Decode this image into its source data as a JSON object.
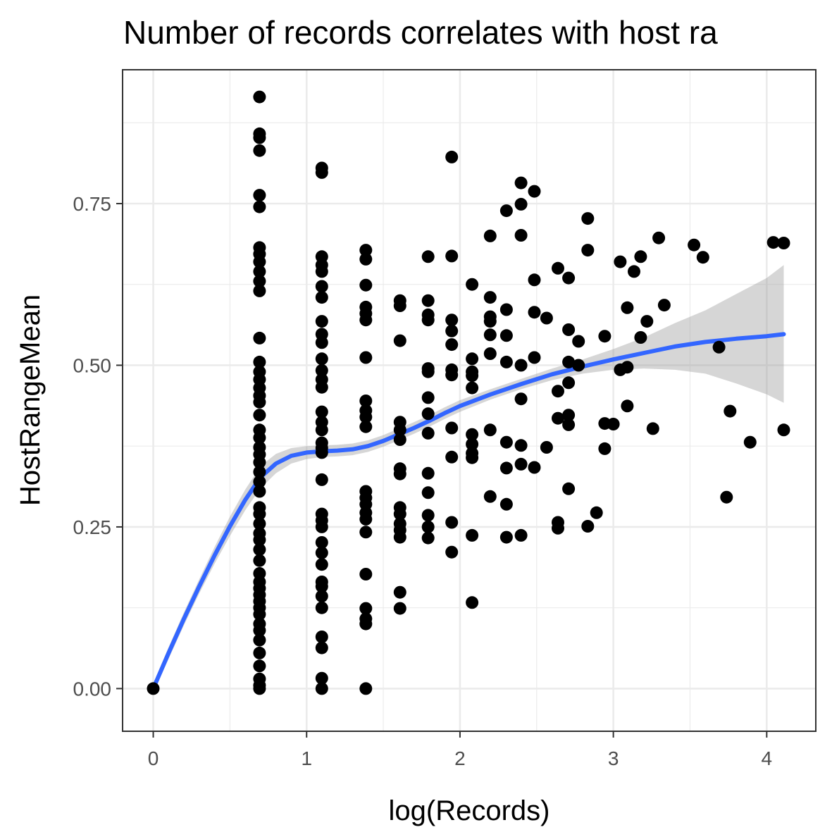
{
  "chart_data": {
    "type": "scatter",
    "title": "Number of records correlates with host ra",
    "xlabel": "log(Records)",
    "ylabel": "HostRangeMean",
    "xlim": [
      -0.2,
      4.32
    ],
    "ylim": [
      -0.066,
      0.957
    ],
    "x_ticks": [
      0,
      1,
      2,
      3,
      4
    ],
    "x_tick_labels": [
      "0",
      "1",
      "2",
      "3",
      "4"
    ],
    "y_ticks": [
      0,
      0.25,
      0.5,
      0.75
    ],
    "y_tick_labels": [
      "0.00",
      "0.25",
      "0.50",
      "0.75"
    ],
    "grid": true,
    "colors": {
      "points": "#000000",
      "smooth": "#3366ff",
      "ribbon": "#999999",
      "panel_border": "#333333",
      "grid": "#ebebeb"
    },
    "points": [
      [
        0,
        0
      ],
      [
        0.693,
        0.915
      ],
      [
        0.693,
        0.858
      ],
      [
        0.693,
        0.852
      ],
      [
        0.693,
        0.832
      ],
      [
        0.693,
        0.763
      ],
      [
        0.693,
        0.745
      ],
      [
        0.693,
        0.682
      ],
      [
        0.693,
        0.672
      ],
      [
        0.693,
        0.66
      ],
      [
        0.693,
        0.645
      ],
      [
        0.693,
        0.63
      ],
      [
        0.693,
        0.615
      ],
      [
        0.693,
        0.542
      ],
      [
        0.693,
        0.505
      ],
      [
        0.693,
        0.49
      ],
      [
        0.693,
        0.478
      ],
      [
        0.693,
        0.465
      ],
      [
        0.693,
        0.453
      ],
      [
        0.693,
        0.443
      ],
      [
        0.693,
        0.423
      ],
      [
        0.693,
        0.4
      ],
      [
        0.693,
        0.388
      ],
      [
        0.693,
        0.373
      ],
      [
        0.693,
        0.362
      ],
      [
        0.693,
        0.35
      ],
      [
        0.693,
        0.335
      ],
      [
        0.693,
        0.32
      ],
      [
        0.693,
        0.305
      ],
      [
        0.693,
        0.28
      ],
      [
        0.693,
        0.27
      ],
      [
        0.693,
        0.255
      ],
      [
        0.693,
        0.24
      ],
      [
        0.693,
        0.23
      ],
      [
        0.693,
        0.215
      ],
      [
        0.693,
        0.198
      ],
      [
        0.693,
        0.178
      ],
      [
        0.693,
        0.165
      ],
      [
        0.693,
        0.155
      ],
      [
        0.693,
        0.145
      ],
      [
        0.693,
        0.135
      ],
      [
        0.693,
        0.125
      ],
      [
        0.693,
        0.115
      ],
      [
        0.693,
        0.1
      ],
      [
        0.693,
        0.09
      ],
      [
        0.693,
        0.075
      ],
      [
        0.693,
        0.055
      ],
      [
        0.693,
        0.035
      ],
      [
        0.693,
        0.015
      ],
      [
        0.693,
        0.005
      ],
      [
        0.693,
        0
      ],
      [
        1.099,
        0.805
      ],
      [
        1.099,
        0.798
      ],
      [
        1.099,
        0.668
      ],
      [
        1.099,
        0.655
      ],
      [
        1.099,
        0.645
      ],
      [
        1.099,
        0.622
      ],
      [
        1.099,
        0.605
      ],
      [
        1.099,
        0.568
      ],
      [
        1.099,
        0.548
      ],
      [
        1.099,
        0.535
      ],
      [
        1.099,
        0.51
      ],
      [
        1.099,
        0.492
      ],
      [
        1.099,
        0.478
      ],
      [
        1.099,
        0.466
      ],
      [
        1.099,
        0.428
      ],
      [
        1.099,
        0.412
      ],
      [
        1.099,
        0.4
      ],
      [
        1.099,
        0.38
      ],
      [
        1.099,
        0.372
      ],
      [
        1.099,
        0.365
      ],
      [
        1.099,
        0.323
      ],
      [
        1.099,
        0.27
      ],
      [
        1.099,
        0.26
      ],
      [
        1.099,
        0.25
      ],
      [
        1.099,
        0.226
      ],
      [
        1.099,
        0.21
      ],
      [
        1.099,
        0.192
      ],
      [
        1.099,
        0.165
      ],
      [
        1.099,
        0.158
      ],
      [
        1.099,
        0.143
      ],
      [
        1.099,
        0.125
      ],
      [
        1.099,
        0.08
      ],
      [
        1.099,
        0.063
      ],
      [
        1.099,
        0.016
      ],
      [
        1.099,
        0
      ],
      [
        1.386,
        0.678
      ],
      [
        1.386,
        0.664
      ],
      [
        1.386,
        0.624
      ],
      [
        1.386,
        0.59
      ],
      [
        1.386,
        0.58
      ],
      [
        1.386,
        0.57
      ],
      [
        1.386,
        0.512
      ],
      [
        1.386,
        0.445
      ],
      [
        1.386,
        0.43
      ],
      [
        1.386,
        0.42
      ],
      [
        1.386,
        0.405
      ],
      [
        1.386,
        0.305
      ],
      [
        1.386,
        0.295
      ],
      [
        1.386,
        0.285
      ],
      [
        1.386,
        0.272
      ],
      [
        1.386,
        0.262
      ],
      [
        1.386,
        0.242
      ],
      [
        1.386,
        0.177
      ],
      [
        1.386,
        0.124
      ],
      [
        1.386,
        0.108
      ],
      [
        1.386,
        0.1
      ],
      [
        1.386,
        0
      ],
      [
        1.609,
        0.6
      ],
      [
        1.609,
        0.592
      ],
      [
        1.609,
        0.538
      ],
      [
        1.609,
        0.412
      ],
      [
        1.609,
        0.4
      ],
      [
        1.609,
        0.385
      ],
      [
        1.609,
        0.34
      ],
      [
        1.609,
        0.332
      ],
      [
        1.609,
        0.28
      ],
      [
        1.609,
        0.27
      ],
      [
        1.609,
        0.255
      ],
      [
        1.609,
        0.245
      ],
      [
        1.609,
        0.234
      ],
      [
        1.609,
        0.149
      ],
      [
        1.609,
        0.124
      ],
      [
        1.792,
        0.668
      ],
      [
        1.792,
        0.6
      ],
      [
        1.792,
        0.578
      ],
      [
        1.792,
        0.57
      ],
      [
        1.792,
        0.495
      ],
      [
        1.792,
        0.49
      ],
      [
        1.792,
        0.45
      ],
      [
        1.792,
        0.425
      ],
      [
        1.792,
        0.395
      ],
      [
        1.792,
        0.333
      ],
      [
        1.792,
        0.303
      ],
      [
        1.792,
        0.268
      ],
      [
        1.792,
        0.25
      ],
      [
        1.792,
        0.233
      ],
      [
        1.946,
        0.822
      ],
      [
        1.946,
        0.669
      ],
      [
        1.946,
        0.57
      ],
      [
        1.946,
        0.553
      ],
      [
        1.946,
        0.532
      ],
      [
        1.946,
        0.493
      ],
      [
        1.946,
        0.485
      ],
      [
        1.946,
        0.403
      ],
      [
        1.946,
        0.358
      ],
      [
        1.946,
        0.257
      ],
      [
        1.946,
        0.211
      ],
      [
        2.079,
        0.625
      ],
      [
        2.079,
        0.51
      ],
      [
        2.079,
        0.49
      ],
      [
        2.079,
        0.484
      ],
      [
        2.079,
        0.465
      ],
      [
        2.079,
        0.393
      ],
      [
        2.079,
        0.378
      ],
      [
        2.079,
        0.364
      ],
      [
        2.079,
        0.357
      ],
      [
        2.079,
        0.237
      ],
      [
        2.079,
        0.133
      ],
      [
        2.197,
        0.7
      ],
      [
        2.197,
        0.605
      ],
      [
        2.197,
        0.575
      ],
      [
        2.197,
        0.568
      ],
      [
        2.197,
        0.547
      ],
      [
        2.197,
        0.518
      ],
      [
        2.197,
        0.4
      ],
      [
        2.197,
        0.297
      ],
      [
        2.303,
        0.739
      ],
      [
        2.303,
        0.586
      ],
      [
        2.303,
        0.546
      ],
      [
        2.303,
        0.505
      ],
      [
        2.303,
        0.381
      ],
      [
        2.303,
        0.341
      ],
      [
        2.303,
        0.285
      ],
      [
        2.303,
        0.234
      ],
      [
        2.398,
        0.782
      ],
      [
        2.398,
        0.749
      ],
      [
        2.398,
        0.701
      ],
      [
        2.398,
        0.5
      ],
      [
        2.398,
        0.448
      ],
      [
        2.398,
        0.376
      ],
      [
        2.398,
        0.347
      ],
      [
        2.398,
        0.237
      ],
      [
        2.485,
        0.769
      ],
      [
        2.485,
        0.632
      ],
      [
        2.485,
        0.582
      ],
      [
        2.485,
        0.512
      ],
      [
        2.485,
        0.342
      ],
      [
        2.565,
        0.573
      ],
      [
        2.565,
        0.373
      ],
      [
        2.639,
        0.65
      ],
      [
        2.639,
        0.46
      ],
      [
        2.639,
        0.418
      ],
      [
        2.639,
        0.257
      ],
      [
        2.639,
        0.248
      ],
      [
        2.708,
        0.635
      ],
      [
        2.708,
        0.555
      ],
      [
        2.708,
        0.505
      ],
      [
        2.708,
        0.473
      ],
      [
        2.708,
        0.423
      ],
      [
        2.708,
        0.408
      ],
      [
        2.708,
        0.309
      ],
      [
        2.773,
        0.537
      ],
      [
        2.773,
        0.5
      ],
      [
        2.833,
        0.727
      ],
      [
        2.833,
        0.678
      ],
      [
        2.833,
        0.251
      ],
      [
        2.89,
        0.272
      ],
      [
        2.944,
        0.545
      ],
      [
        2.944,
        0.41
      ],
      [
        2.944,
        0.371
      ],
      [
        3.0,
        0.409
      ],
      [
        3.045,
        0.66
      ],
      [
        3.045,
        0.493
      ],
      [
        3.091,
        0.589
      ],
      [
        3.091,
        0.497
      ],
      [
        3.091,
        0.437
      ],
      [
        3.135,
        0.645
      ],
      [
        3.178,
        0.668
      ],
      [
        3.178,
        0.543
      ],
      [
        3.219,
        0.568
      ],
      [
        3.258,
        0.402
      ],
      [
        3.296,
        0.697
      ],
      [
        3.332,
        0.593
      ],
      [
        3.526,
        0.686
      ],
      [
        3.584,
        0.667
      ],
      [
        3.689,
        0.528
      ],
      [
        3.738,
        0.296
      ],
      [
        3.761,
        0.429
      ],
      [
        3.892,
        0.381
      ],
      [
        4.043,
        0.69
      ],
      [
        4.111,
        0.689
      ],
      [
        4.111,
        0.4
      ]
    ],
    "smooth_line": {
      "x": [
        0,
        0.1,
        0.2,
        0.3,
        0.4,
        0.5,
        0.6,
        0.7,
        0.8,
        0.9,
        1.0,
        1.1,
        1.2,
        1.3,
        1.4,
        1.5,
        1.6,
        1.7,
        1.8,
        1.9,
        2.0,
        2.2,
        2.4,
        2.6,
        2.8,
        3.0,
        3.2,
        3.4,
        3.6,
        3.8,
        4.0,
        4.111
      ],
      "y": [
        0,
        0.055,
        0.108,
        0.158,
        0.206,
        0.251,
        0.292,
        0.327,
        0.348,
        0.36,
        0.365,
        0.367,
        0.368,
        0.37,
        0.375,
        0.383,
        0.393,
        0.403,
        0.414,
        0.426,
        0.437,
        0.455,
        0.471,
        0.486,
        0.498,
        0.509,
        0.519,
        0.529,
        0.536,
        0.541,
        0.545,
        0.548
      ],
      "ymin": [
        -0.007,
        0.046,
        0.098,
        0.147,
        0.193,
        0.236,
        0.276,
        0.31,
        0.333,
        0.348,
        0.355,
        0.358,
        0.359,
        0.361,
        0.366,
        0.374,
        0.384,
        0.394,
        0.405,
        0.417,
        0.428,
        0.447,
        0.463,
        0.477,
        0.487,
        0.493,
        0.495,
        0.493,
        0.487,
        0.472,
        0.455,
        0.442
      ],
      "ymax": [
        0.007,
        0.064,
        0.118,
        0.169,
        0.219,
        0.266,
        0.308,
        0.344,
        0.363,
        0.372,
        0.375,
        0.376,
        0.377,
        0.379,
        0.384,
        0.392,
        0.402,
        0.412,
        0.423,
        0.435,
        0.446,
        0.463,
        0.479,
        0.495,
        0.509,
        0.525,
        0.543,
        0.565,
        0.585,
        0.61,
        0.635,
        0.655
      ]
    }
  }
}
